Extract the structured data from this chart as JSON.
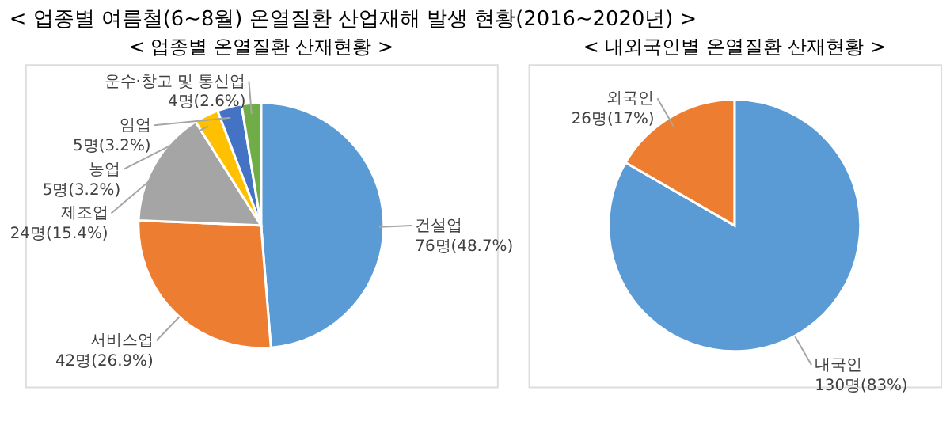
{
  "chart_data": [
    {
      "type": "pie",
      "title": "< 업종별 온열질환 산재현황 >",
      "annotations": [
        "< 업종별 여름철(6~8월) 온열질환 산업재해 발생 현황(2016~2020년) >"
      ],
      "categories": [
        "건설업",
        "서비스업",
        "제조업",
        "농업",
        "임업",
        "운수·창고 및 통신업"
      ],
      "values": [
        76,
        42,
        24,
        5,
        5,
        4
      ],
      "value_labels": [
        "76명(48.7%)",
        "42명(26.9%)",
        "24명(15.4%)",
        "5명(3.2%)",
        "5명(3.2%)",
        "4명(2.6%)"
      ],
      "colors": [
        "#5b9bd5",
        "#ed7d31",
        "#a5a5a5",
        "#ffc000",
        "#4472c4",
        "#70ad47"
      ],
      "legend": false
    },
    {
      "type": "pie",
      "title": "< 내외국인별 온열질환 산재현황 >",
      "categories": [
        "내국인",
        "외국인"
      ],
      "values": [
        130,
        26
      ],
      "value_labels": [
        "130명(83%)",
        "26명(17%)"
      ],
      "colors": [
        "#5b9bd5",
        "#ed7d31"
      ],
      "legend": false
    }
  ]
}
